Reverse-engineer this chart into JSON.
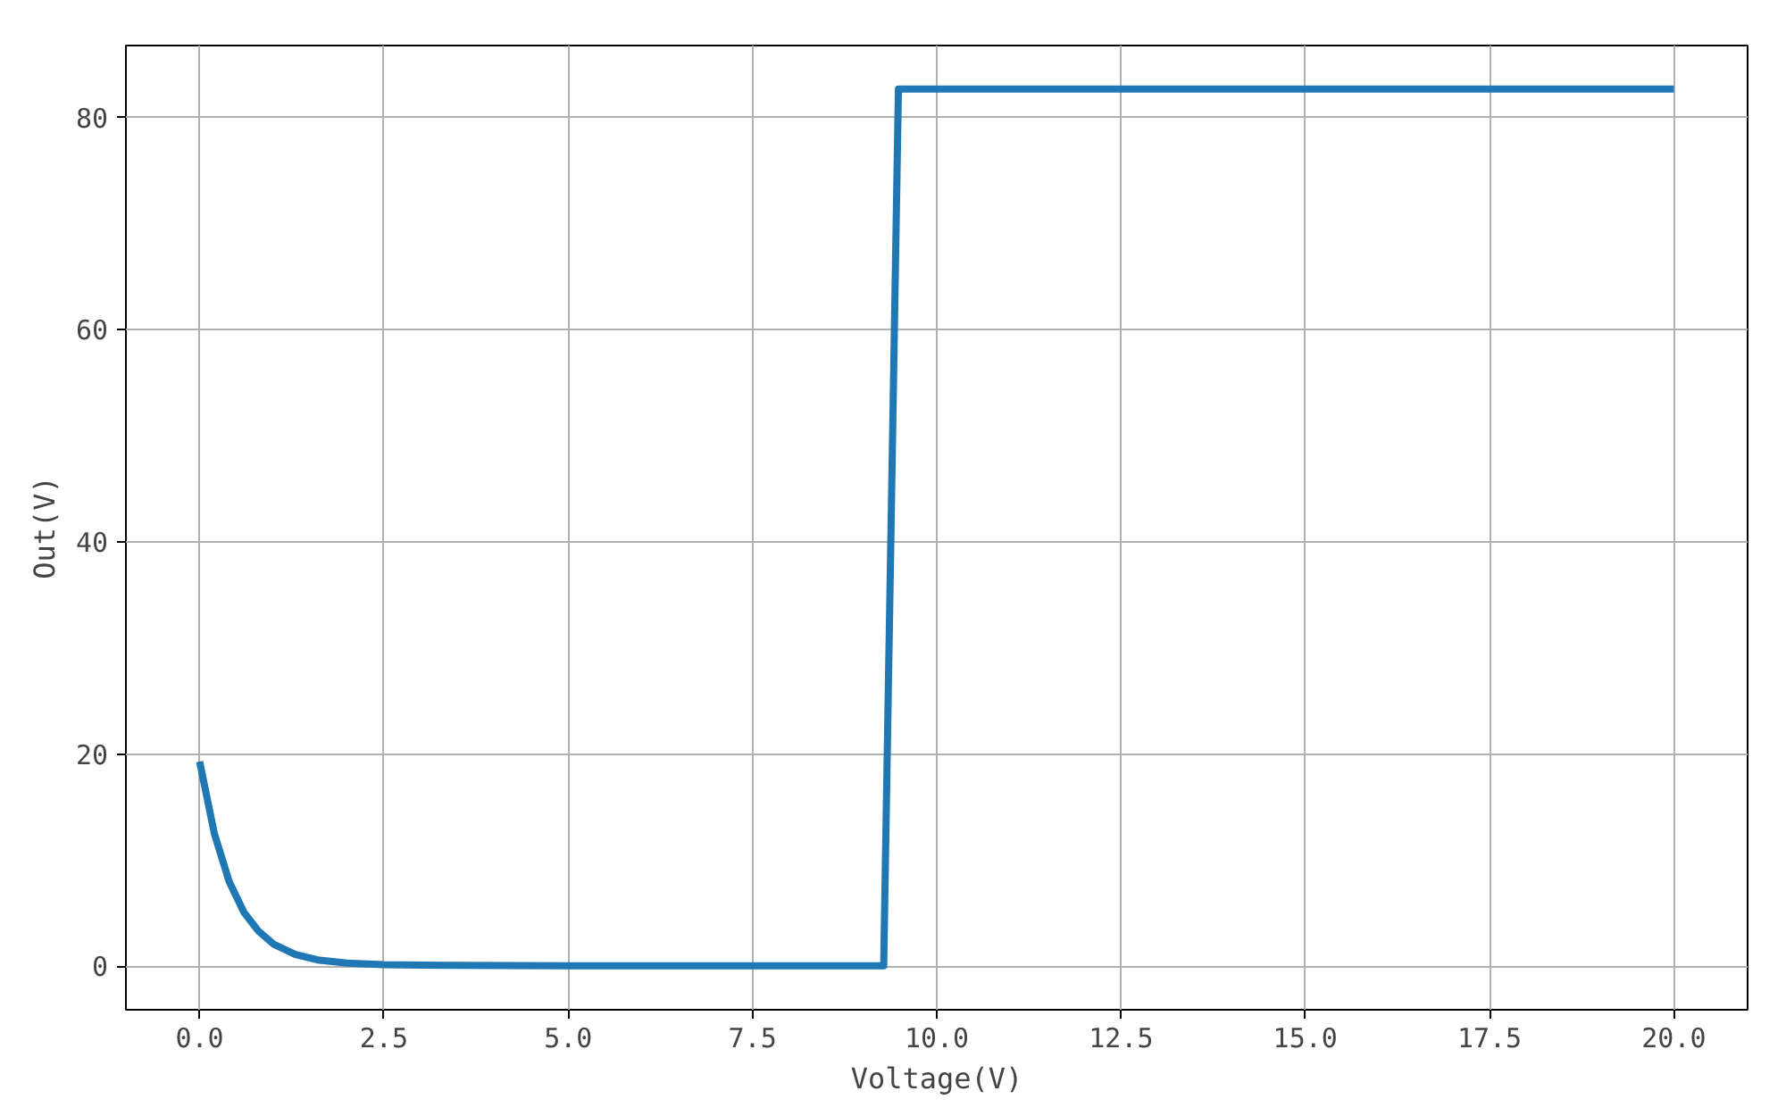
{
  "chart_data": {
    "type": "line",
    "xlabel": "Voltage(V)",
    "ylabel": "Out(V)",
    "x": [
      0,
      0.2,
      0.4,
      0.6,
      0.8,
      1.0,
      1.3,
      1.6,
      2.0,
      2.5,
      3.0,
      5.0,
      9.28,
      9.48,
      20
    ],
    "series": [
      {
        "color": "#1f77b4",
        "values": [
          19.3,
          12.5,
          8.0,
          5.1,
          3.3,
          2.1,
          1.1,
          0.6,
          0.3,
          0.15,
          0.1,
          0.05,
          0.05,
          82.7,
          82.7
        ]
      }
    ],
    "xlim": [
      -1.0,
      21.0
    ],
    "ylim": [
      -4.1,
      86.8
    ],
    "xticks": [
      {
        "value": 0,
        "label": "0.0"
      },
      2.5,
      {
        "value": 5,
        "label": "5.0"
      },
      7.5,
      {
        "value": 10,
        "label": "10.0"
      },
      12.5,
      {
        "value": 15,
        "label": "15.0"
      },
      17.5,
      {
        "value": 20,
        "label": "20.0"
      }
    ],
    "yticks": [
      0,
      20,
      40,
      60,
      80
    ],
    "grid": true,
    "line_style": "solid",
    "marker": "none"
  }
}
